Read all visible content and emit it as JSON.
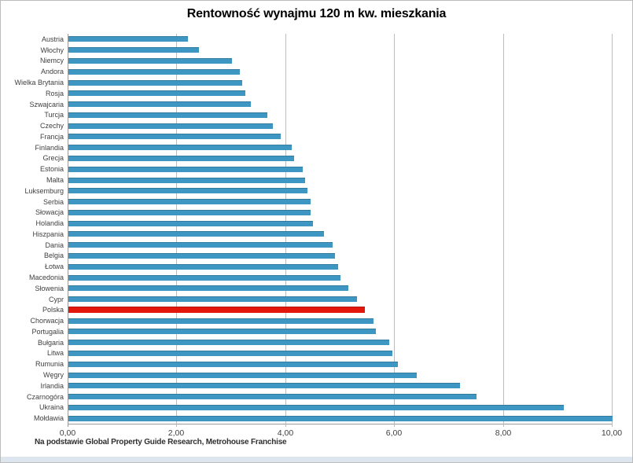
{
  "window": {
    "background": "#ffffff",
    "border_color": "#bcbcbc",
    "bottom_strip_color": "#dde6ef"
  },
  "chart_data": {
    "type": "bar",
    "orientation": "horizontal",
    "title": "Rentowność wynajmu 120 m kw. mieszkania",
    "footnote": "Na podstawie Global Property Guide Research, Metrohouse Franchise",
    "categories": [
      "Austria",
      "Włochy",
      "Niemcy",
      "Andora",
      "Wielka Brytania",
      "Rosja",
      "Szwajcaria",
      "Turcja",
      "Czechy",
      "Francja",
      "Finlandia",
      "Grecja",
      "Estonia",
      "Malta",
      "Luksemburg",
      "Serbia",
      "Słowacja",
      "Holandia",
      "Hiszpania",
      "Dania",
      "Belgia",
      "Łotwa",
      "Macedonia",
      "Słowenia",
      "Cypr",
      "Polska",
      "Chorwacja",
      "Portugalia",
      "Bułgaria",
      "Litwa",
      "Rumunia",
      "Węgry",
      "Irlandia",
      "Czarnogóra",
      "Ukraina",
      "Mołdawia"
    ],
    "values": [
      2.2,
      2.4,
      3.0,
      3.15,
      3.2,
      3.25,
      3.35,
      3.65,
      3.75,
      3.9,
      4.1,
      4.15,
      4.3,
      4.35,
      4.4,
      4.45,
      4.45,
      4.5,
      4.7,
      4.85,
      4.9,
      4.95,
      5.0,
      5.15,
      5.3,
      5.45,
      5.6,
      5.65,
      5.9,
      5.95,
      6.05,
      6.4,
      7.2,
      7.5,
      9.1,
      10.0
    ],
    "highlight_category": "Polska",
    "highlight_index": 25,
    "xlim": [
      0,
      10
    ],
    "x_ticks": [
      "0,00",
      "2,00",
      "4,00",
      "6,00",
      "8,00",
      "10,00"
    ],
    "x_tick_values": [
      0,
      2,
      4,
      6,
      8,
      10
    ],
    "grid": "vertical",
    "legend": "none",
    "ylabel": "",
    "xlabel": "",
    "colors": {
      "bar": "#3e96c3",
      "highlight": "#e1170c",
      "gridline": "#bdbdbd",
      "axis_line": "#9b9b9b",
      "text": "#3f3f3f",
      "title": "#000000"
    }
  }
}
